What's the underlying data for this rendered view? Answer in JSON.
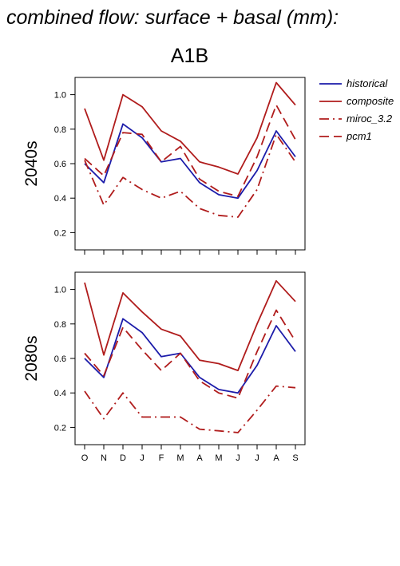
{
  "title": "combined flow: surface + basal (mm):",
  "scenario": "A1B",
  "chart_data": {
    "type": "line",
    "categories": [
      "O",
      "N",
      "D",
      "J",
      "F",
      "M",
      "A",
      "M",
      "J",
      "J",
      "A",
      "S"
    ],
    "ylim": [
      0.1,
      1.1
    ],
    "yticks": [
      0.2,
      0.4,
      0.6,
      0.8,
      1.0
    ],
    "ytick_labels": [
      "0.2",
      "0.4",
      "0.6",
      "0.8",
      "1.0"
    ],
    "legend_position": "right",
    "legend": [
      {
        "name": "historical",
        "color": "#1c1caa",
        "dash": "solid"
      },
      {
        "name": "composite",
        "color": "#b01c1c",
        "dash": "solid"
      },
      {
        "name": "miroc_3.2",
        "color": "#b01c1c",
        "dash": "dashdot"
      },
      {
        "name": "pcm1",
        "color": "#b01c1c",
        "dash": "dashed"
      }
    ],
    "panels": [
      {
        "label": "2040s",
        "series": [
          {
            "name": "historical",
            "values": [
              0.6,
              0.49,
              0.83,
              0.75,
              0.61,
              0.63,
              0.49,
              0.42,
              0.4,
              0.56,
              0.79,
              0.64
            ]
          },
          {
            "name": "composite",
            "values": [
              0.92,
              0.62,
              1.0,
              0.93,
              0.79,
              0.73,
              0.61,
              0.58,
              0.54,
              0.75,
              1.07,
              0.94
            ]
          },
          {
            "name": "miroc_3.2",
            "values": [
              0.62,
              0.36,
              0.52,
              0.45,
              0.4,
              0.44,
              0.34,
              0.3,
              0.29,
              0.45,
              0.77,
              0.61
            ]
          },
          {
            "name": "pcm1",
            "values": [
              0.63,
              0.53,
              0.78,
              0.77,
              0.61,
              0.7,
              0.51,
              0.44,
              0.41,
              0.64,
              0.94,
              0.74
            ]
          }
        ]
      },
      {
        "label": "2080s",
        "series": [
          {
            "name": "historical",
            "values": [
              0.6,
              0.49,
              0.83,
              0.75,
              0.61,
              0.63,
              0.49,
              0.42,
              0.4,
              0.56,
              0.79,
              0.64
            ]
          },
          {
            "name": "composite",
            "values": [
              1.04,
              0.62,
              0.98,
              0.87,
              0.77,
              0.73,
              0.59,
              0.57,
              0.53,
              0.8,
              1.05,
              0.93
            ]
          },
          {
            "name": "miroc_3.2",
            "values": [
              0.41,
              0.25,
              0.4,
              0.26,
              0.26,
              0.26,
              0.19,
              0.18,
              0.17,
              0.3,
              0.44,
              0.43
            ]
          },
          {
            "name": "pcm1",
            "values": [
              0.63,
              0.5,
              0.78,
              0.65,
              0.53,
              0.63,
              0.47,
              0.4,
              0.37,
              0.64,
              0.88,
              0.7
            ]
          }
        ]
      }
    ]
  }
}
